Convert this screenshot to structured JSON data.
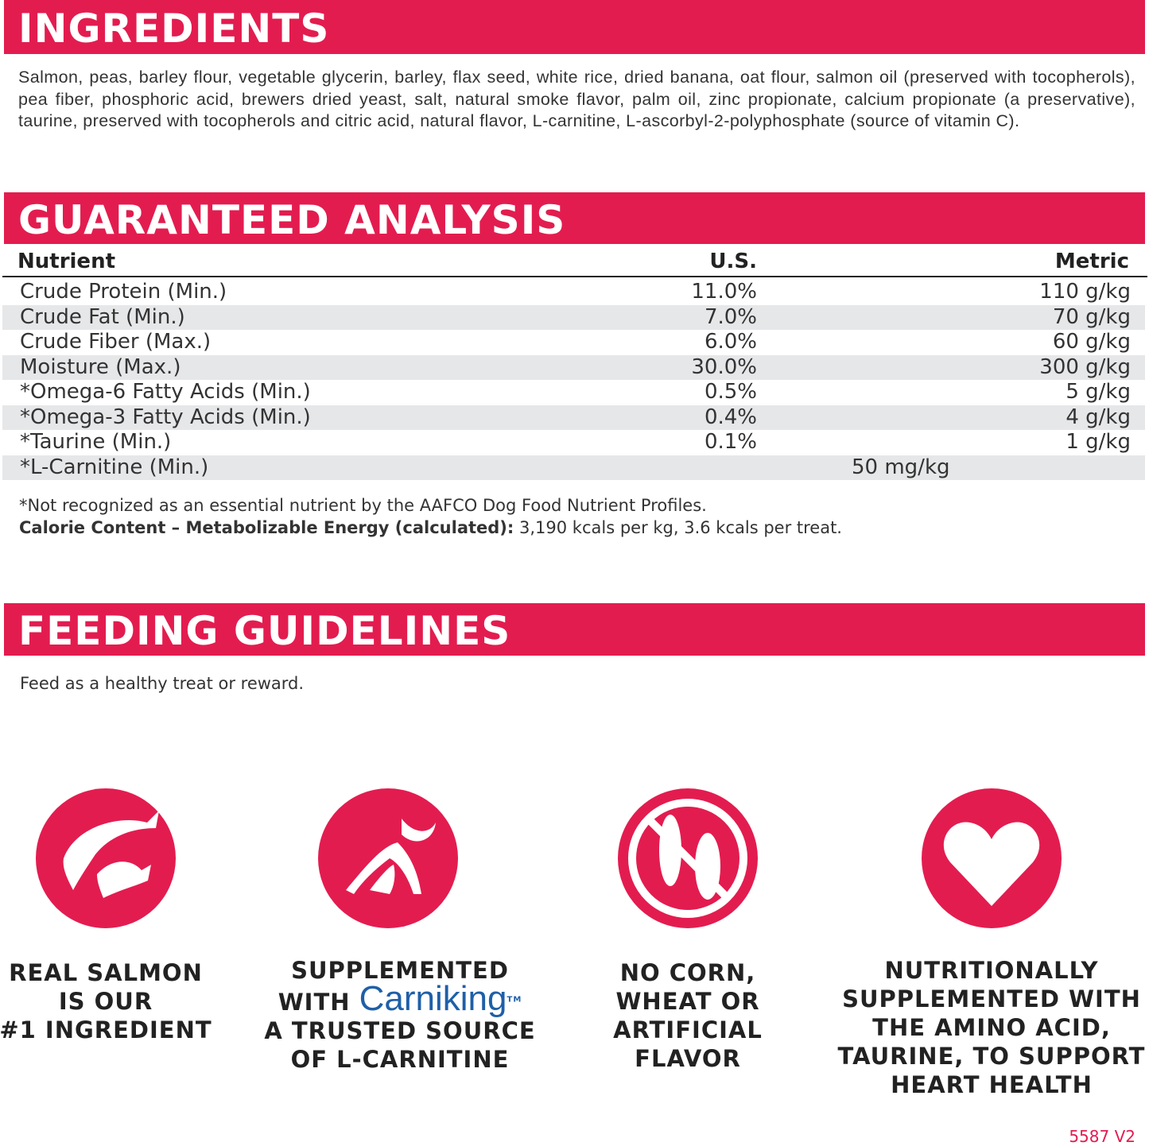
{
  "ingredients": {
    "title": "INGREDIENTS",
    "text": "Salmon, peas, barley flour, vegetable glycerin, barley, flax seed, white rice, dried banana, oat flour, salmon oil (preserved with tocopherols), pea fiber, phosphoric acid, brewers dried yeast, salt, natural smoke flavor, palm oil, zinc propionate, calcium propionate (a preservative), taurine, preserved with tocopherols and citric acid, natural flavor, L-carnitine, L-ascorbyl-2-polyphosphate (source of vitamin C)."
  },
  "analysis": {
    "title": "GUARANTEED ANALYSIS",
    "columns": [
      "Nutrient",
      "U.S.",
      "Metric"
    ],
    "rows": [
      [
        "Crude Protein (Min.)",
        "11.0%",
        "110 g/kg"
      ],
      [
        "Crude Fat (Min.)",
        "7.0%",
        "70 g/kg"
      ],
      [
        "Crude Fiber (Max.)",
        "6.0%",
        "60 g/kg"
      ],
      [
        "Moisture (Max.)",
        "30.0%",
        "300 g/kg"
      ],
      [
        "*Omega-6 Fatty Acids (Min.)",
        "0.5%",
        "5 g/kg"
      ],
      [
        "*Omega-3 Fatty Acids (Min.)",
        "0.4%",
        "4 g/kg"
      ],
      [
        "*Taurine (Min.)",
        "0.1%",
        "1 g/kg"
      ],
      [
        "*L-Carnitine (Min.)",
        "50 mg/kg"
      ]
    ],
    "footnote": "*Not recognized as an essential nutrient by the AAFCO Dog Food Nutrient Profiles.",
    "calorie_label": "Calorie Content – Metabolizable Energy (calculated):",
    "calorie_text": "3,190 kcals per kg, 3.6 kcals per treat."
  },
  "feeding": {
    "title": "FEEDING GUIDELINES",
    "text": "Feed as a healthy treat or reward."
  },
  "features": [
    {
      "lines": [
        "REAL SALMON",
        "IS OUR",
        "#1 INGREDIENT"
      ]
    },
    {
      "lines": [
        "SUPPLEMENTED"
      ],
      "with": "WITH",
      "brand": "Carniking",
      "tm": "TM",
      "lines_after": [
        "A TRUSTED SOURCE",
        "OF L-CARNITINE"
      ]
    },
    {
      "lines": [
        "NO CORN,",
        "WHEAT OR",
        "ARTIFICIAL",
        "FLAVOR"
      ]
    },
    {
      "lines": [
        "NUTRITIONALLY",
        "SUPPLEMENTED WITH",
        "THE AMINO ACID,",
        "TAURINE, TO SUPPORT",
        "HEART HEALTH"
      ]
    }
  ],
  "code": "5587 V2"
}
